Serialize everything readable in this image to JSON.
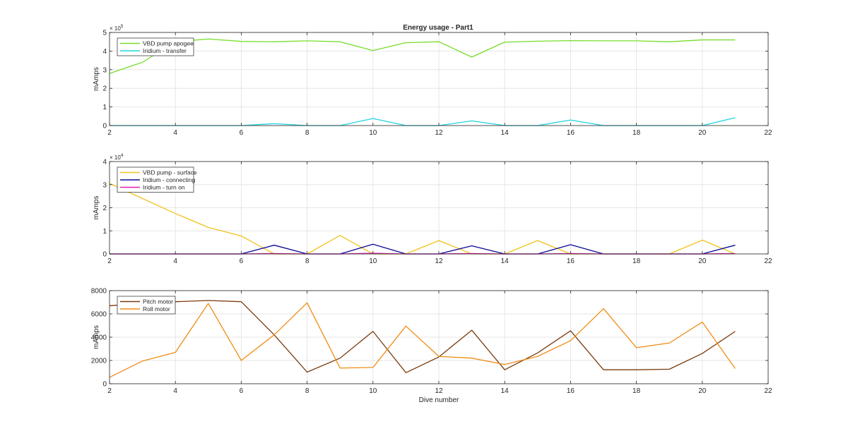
{
  "figure_title": "Energy usage - Part1",
  "chart_data": [
    {
      "type": "line",
      "title": "Energy usage - Part1",
      "xlabel": "",
      "ylabel": "mAmps",
      "xlim": [
        2,
        22
      ],
      "ylim": [
        0,
        5
      ],
      "xticks": [
        2,
        4,
        6,
        8,
        10,
        12,
        14,
        16,
        18,
        20,
        22
      ],
      "yticks": [
        0,
        1,
        2,
        3,
        4,
        5
      ],
      "y_exponent": "5",
      "y_exponent_base": "× 10",
      "grid": true,
      "legend_position": "top-left",
      "x": [
        2,
        3,
        4,
        5,
        6,
        7,
        8,
        9,
        10,
        11,
        12,
        13,
        14,
        15,
        16,
        17,
        18,
        19,
        20,
        21
      ],
      "series": [
        {
          "name": "VBD pump apogee",
          "color": "#77dd2a",
          "values": [
            2.8,
            3.4,
            4.5,
            4.65,
            4.52,
            4.5,
            4.55,
            4.5,
            4.03,
            4.45,
            4.5,
            3.68,
            4.48,
            4.53,
            4.56,
            4.55,
            4.55,
            4.5,
            4.6,
            4.6
          ]
        },
        {
          "name": "Iridium - transfer",
          "color": "#22d3df",
          "values": [
            0,
            0,
            0,
            0,
            0,
            0.1,
            0,
            0,
            0.38,
            0,
            0,
            0.25,
            0,
            0,
            0.3,
            0,
            0,
            0,
            0,
            0.42
          ]
        }
      ]
    },
    {
      "type": "line",
      "title": "",
      "xlabel": "",
      "ylabel": "mAmps",
      "xlim": [
        2,
        22
      ],
      "ylim": [
        0,
        4
      ],
      "xticks": [
        2,
        4,
        6,
        8,
        10,
        12,
        14,
        16,
        18,
        20,
        22
      ],
      "yticks": [
        0,
        1,
        2,
        3,
        4
      ],
      "y_exponent": "4",
      "y_exponent_base": "× 10",
      "grid": true,
      "legend_position": "top-left",
      "x": [
        2,
        3,
        4,
        5,
        6,
        7,
        8,
        9,
        10,
        11,
        12,
        13,
        14,
        15,
        16,
        17,
        18,
        19,
        20,
        21
      ],
      "series": [
        {
          "name": "VBD pump - surface",
          "color": "#f2c21f",
          "values": [
            3.05,
            2.4,
            1.75,
            1.15,
            0.78,
            0,
            0,
            0.8,
            0,
            0,
            0.58,
            0,
            0,
            0.58,
            0,
            0,
            0,
            0,
            0.6,
            0
          ]
        },
        {
          "name": "Iridium - connecting",
          "color": "#0a0a96",
          "values": [
            0,
            0,
            0,
            0,
            0,
            0.38,
            0,
            0,
            0.42,
            0,
            0,
            0.35,
            0,
            0,
            0.4,
            0,
            0,
            0,
            0,
            0.38
          ]
        },
        {
          "name": "Iridium - turn on",
          "color": "#e01fb4",
          "values": [
            0,
            0,
            0,
            0,
            0,
            0.02,
            0,
            0,
            0.03,
            0,
            0,
            0.02,
            0,
            0,
            0.02,
            0,
            0,
            0,
            0,
            0.02
          ]
        }
      ]
    },
    {
      "type": "line",
      "title": "",
      "xlabel": "Dive number",
      "ylabel": "mAmps",
      "xlim": [
        2,
        22
      ],
      "ylim": [
        0,
        8000
      ],
      "xticks": [
        2,
        4,
        6,
        8,
        10,
        12,
        14,
        16,
        18,
        20,
        22
      ],
      "yticks": [
        0,
        2000,
        4000,
        6000,
        8000
      ],
      "grid": true,
      "legend_position": "top-left",
      "x": [
        2,
        3,
        4,
        5,
        6,
        7,
        8,
        9,
        10,
        11,
        12,
        13,
        14,
        15,
        16,
        17,
        18,
        19,
        20,
        21
      ],
      "series": [
        {
          "name": "Pitch motor",
          "color": "#7a3b0e",
          "values": [
            6700,
            6900,
            7050,
            7150,
            7050,
            4200,
            1000,
            2200,
            4500,
            950,
            2300,
            4600,
            1200,
            2650,
            4550,
            1200,
            1200,
            1250,
            2600,
            4500
          ]
        },
        {
          "name": "Roll motor",
          "color": "#ef8c14",
          "values": [
            550,
            1950,
            2700,
            6900,
            2000,
            4200,
            6950,
            1350,
            1400,
            4950,
            2350,
            2200,
            1650,
            2350,
            3700,
            6450,
            3100,
            3500,
            5300,
            1300
          ]
        }
      ]
    }
  ]
}
